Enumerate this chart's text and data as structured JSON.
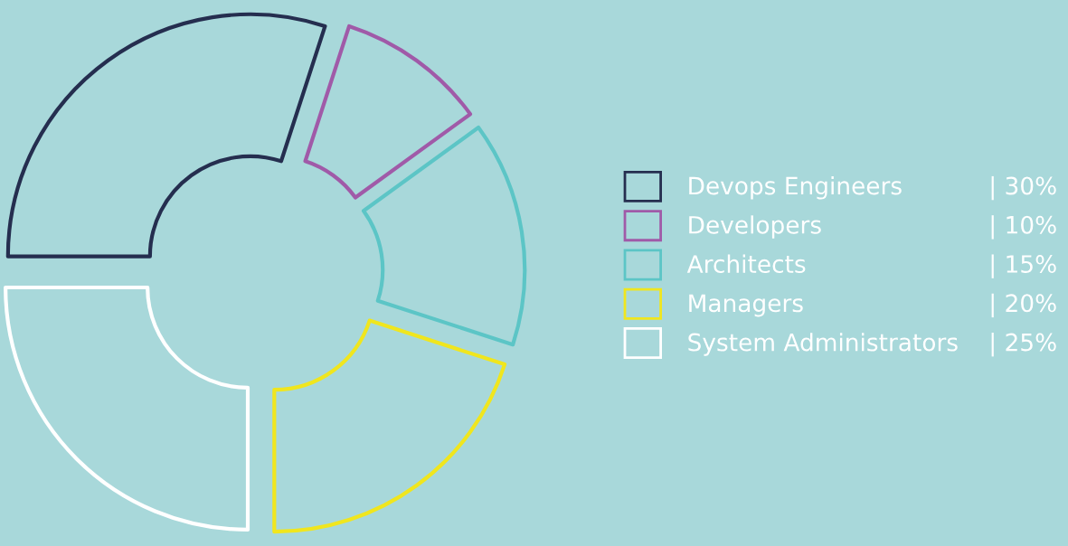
{
  "chart_data": {
    "type": "donut",
    "categories": [
      "Devops Engineers",
      "Developers",
      "Architects",
      "Managers",
      "System Administrators"
    ],
    "values": [
      30,
      10,
      15,
      20,
      25
    ],
    "colors": [
      "#252e4f",
      "#a05aa8",
      "#5cc5c6",
      "#f0e61e",
      "#ffffff"
    ],
    "value_labels": [
      "| 30%",
      "| 10%",
      "| 15%",
      "| 20%",
      "| 25%"
    ],
    "legend": "right"
  }
}
